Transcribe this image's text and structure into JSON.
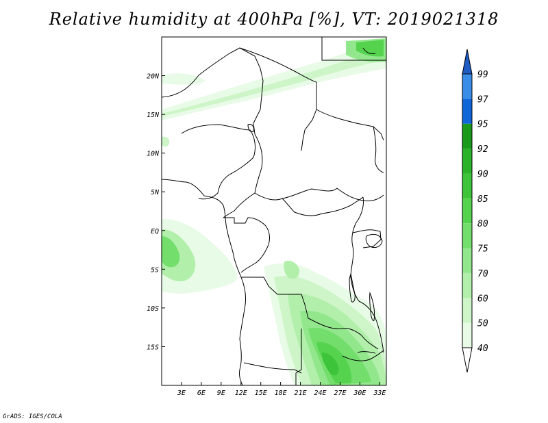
{
  "title": "Relative humidity at 400hPa [%], VT: 2019021318",
  "credit": "GrADS: IGES/COLA",
  "map": {
    "lon_range": [
      0,
      34
    ],
    "lat_range": [
      -20,
      25
    ],
    "x_ticks": [
      "3E",
      "6E",
      "9E",
      "12E",
      "15E",
      "18E",
      "21E",
      "24E",
      "27E",
      "30E",
      "33E"
    ],
    "x_tick_values": [
      3,
      6,
      9,
      12,
      15,
      18,
      21,
      24,
      27,
      30,
      33
    ],
    "y_ticks": [
      "20N",
      "15N",
      "10N",
      "5N",
      "EQ",
      "5S",
      "10S",
      "15S"
    ],
    "y_tick_values": [
      20,
      15,
      10,
      5,
      0,
      -5,
      -10,
      -15
    ]
  },
  "colorbar": {
    "levels": [
      "40",
      "50",
      "60",
      "70",
      "75",
      "80",
      "85",
      "90",
      "92",
      "95",
      "97",
      "99"
    ],
    "colors": [
      "#e8fbe6",
      "#cdf5c8",
      "#b1efab",
      "#92e78c",
      "#74de6d",
      "#55d34f",
      "#3ec43a",
      "#2ab22a",
      "#1a9a1c",
      "#1066d8",
      "#3a8ce6",
      "#1f5bc4"
    ]
  }
}
